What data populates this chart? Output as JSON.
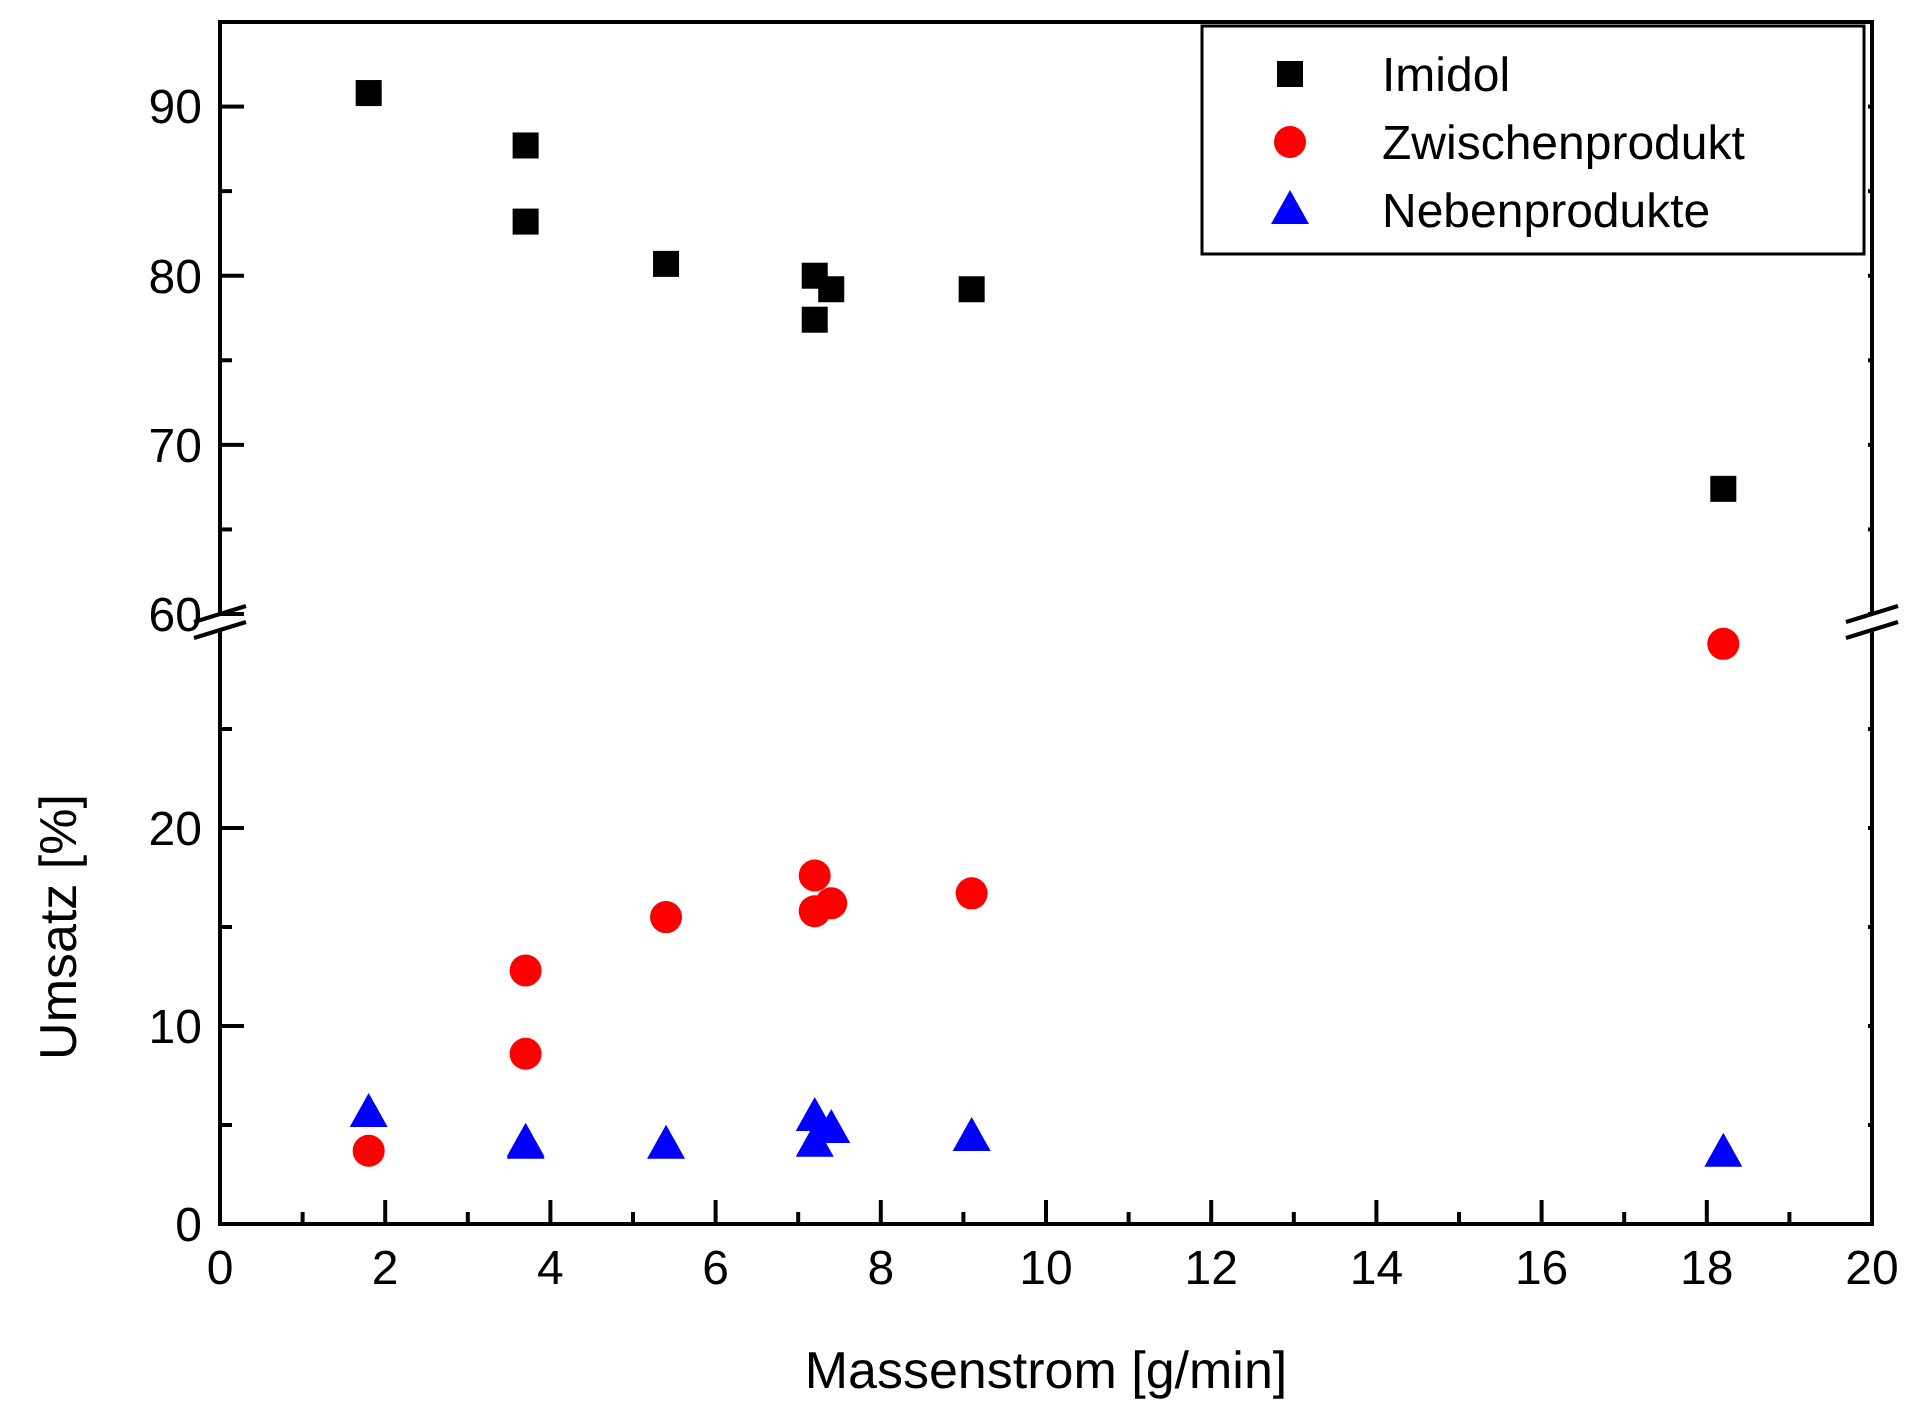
{
  "chart_data": [
    {
      "type": "scatter",
      "x": [
        1.8,
        3.7,
        3.7,
        5.4,
        7.2,
        7.2,
        7.4,
        9.1,
        18.2
      ],
      "xlim": [
        0,
        20
      ],
      "xticks": [
        0,
        2,
        4,
        6,
        8,
        10,
        12,
        14,
        16,
        18,
        20
      ],
      "ylim": [
        60,
        95
      ],
      "yticks": [
        60,
        {
          "value": 65,
          "label": null
        },
        70,
        {
          "value": 75,
          "label": null
        },
        80,
        {
          "value": 85,
          "label": null
        },
        90
      ],
      "tick_labels": "y",
      "legend": "top right",
      "series": [
        {
          "name": "Imidol",
          "color": "#000000",
          "marker": "square",
          "values": [
            90.8,
            87.7,
            83.2,
            80.7,
            80.0,
            77.4,
            79.2,
            79.2,
            67.4
          ]
        },
        {
          "name": "Zwischenprodukt",
          "color": "#ff0000",
          "marker": "circle",
          "values": [
            null,
            null,
            null,
            null,
            null,
            null,
            null,
            null,
            null
          ]
        },
        {
          "name": "Nebenprodukte",
          "color": "#0000ff",
          "marker": "triangle",
          "values": [
            null,
            null,
            null,
            null,
            null,
            null,
            null,
            null,
            null
          ]
        }
      ]
    },
    {
      "type": "scatter",
      "x": [
        1.8,
        3.7,
        3.7,
        5.4,
        7.2,
        7.2,
        7.4,
        9.1,
        18.2
      ],
      "xlabel": "Massenstrom [g/min]",
      "ylabel": "Umsatz [%]",
      "xlim": [
        0,
        20
      ],
      "xticks": [
        0,
        {
          "value": 1,
          "label": null
        },
        2,
        {
          "value": 3,
          "label": null
        },
        4,
        {
          "value": 5,
          "label": null
        },
        6,
        {
          "value": 7,
          "label": null
        },
        8,
        {
          "value": 9,
          "label": null
        },
        10,
        {
          "value": 11,
          "label": null
        },
        12,
        {
          "value": 13,
          "label": null
        },
        14,
        {
          "value": 15,
          "label": null
        },
        16,
        {
          "value": 17,
          "label": null
        },
        18,
        {
          "value": 19,
          "label": null
        },
        20
      ],
      "ylim": [
        0,
        30
      ],
      "yticks": [
        0,
        {
          "value": 5,
          "label": null
        },
        10,
        {
          "value": 15,
          "label": null
        },
        20,
        {
          "value": 25,
          "label": null
        }
      ],
      "series": [
        {
          "color": "#ff0000",
          "marker": "circle",
          "values": [
            3.7,
            12.8,
            8.6,
            15.5,
            17.6,
            15.8,
            16.2,
            16.7,
            29.3
          ]
        },
        {
          "color": "#0000ff",
          "marker": "triangle",
          "values": [
            5.6,
            4.1,
            4.0,
            4.0,
            5.4,
            4.1,
            4.8,
            4.4,
            3.6
          ]
        }
      ]
    }
  ]
}
